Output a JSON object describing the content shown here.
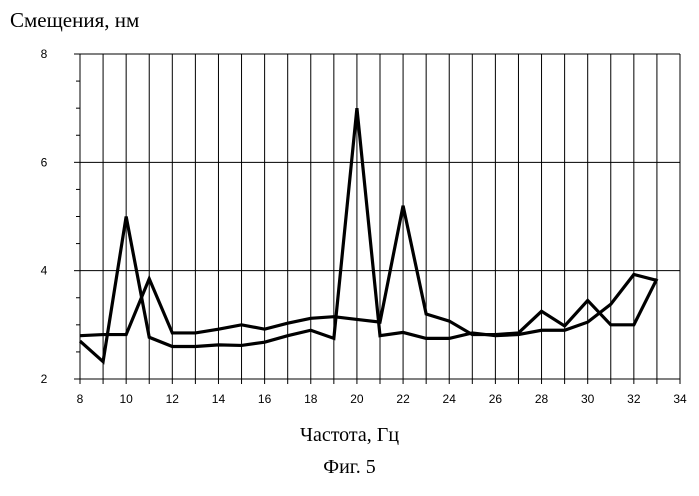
{
  "chart_data": {
    "type": "line",
    "title": "",
    "ylabel": "Смещения, нм",
    "xlabel": "Частота, Гц",
    "caption": "Фиг. 5",
    "xlim": [
      8,
      34
    ],
    "ylim": [
      2,
      8
    ],
    "x_ticks": [
      8,
      10,
      12,
      14,
      16,
      18,
      20,
      22,
      24,
      26,
      28,
      30,
      32,
      34
    ],
    "y_ticks": [
      2,
      4,
      6,
      8
    ],
    "grid": true,
    "x": [
      8,
      9,
      10,
      11,
      12,
      13,
      14,
      15,
      16,
      17,
      18,
      19,
      20,
      21,
      22,
      23,
      24,
      25,
      26,
      27,
      28,
      29,
      30,
      31,
      32,
      33
    ],
    "series": [
      {
        "values": [
          2.8,
          2.82,
          2.82,
          3.85,
          2.85,
          2.85,
          2.92,
          3.0,
          2.92,
          3.03,
          3.12,
          3.15,
          3.1,
          3.05,
          5.2,
          3.2,
          3.07,
          2.82,
          2.82,
          2.85,
          3.25,
          2.98,
          3.45,
          3.0,
          3.0,
          3.85
        ]
      },
      {
        "values": [
          2.7,
          2.32,
          5.0,
          2.77,
          2.6,
          2.6,
          2.63,
          2.62,
          2.68,
          2.8,
          2.9,
          2.75,
          7.0,
          2.8,
          2.86,
          2.75,
          2.75,
          2.85,
          2.8,
          2.82,
          2.9,
          2.9,
          3.05,
          3.38,
          3.93,
          3.82
        ]
      }
    ]
  }
}
